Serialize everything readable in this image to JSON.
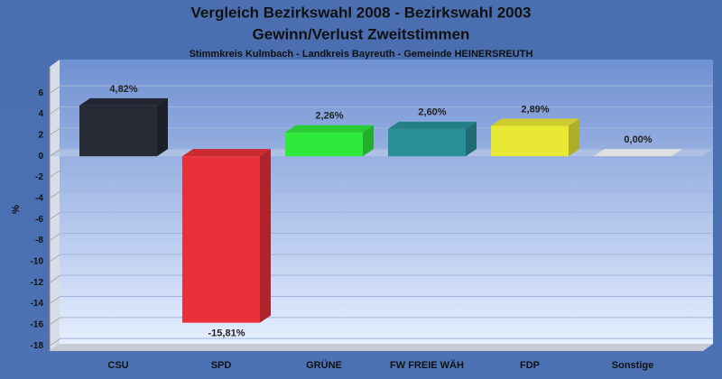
{
  "chart_data": {
    "type": "bar",
    "title": "Vergleich Bezirkswahl 2008 - Bezirkswahl 2003",
    "subtitle": "Gewinn/Verlust Zweitstimmen",
    "annotation": "Stimmkreis Kulmbach - Landkreis Bayreuth - Gemeinde HEINERSREUTH",
    "y_label": "%",
    "categories": [
      "CSU",
      "SPD",
      "GRÜNE",
      "FW FREIE WÄH",
      "FDP",
      "Sonstige"
    ],
    "values": [
      4.82,
      -15.81,
      2.26,
      2.6,
      2.89,
      0
    ],
    "value_labels": [
      "4,82%",
      "-15,81%",
      "2,26%",
      "2,60%",
      "2,89%",
      "0,00%"
    ],
    "colors": [
      "#262b36",
      "#e8303a",
      "#2ee83a",
      "#2a9098",
      "#e8e835",
      "#ffffff"
    ],
    "ylim": [
      -18.5,
      8.5
    ],
    "yticks": [
      6,
      4,
      2,
      0,
      -2,
      -4,
      -6,
      -8,
      -10,
      -12,
      -14,
      -16,
      -18
    ],
    "grid": true
  }
}
